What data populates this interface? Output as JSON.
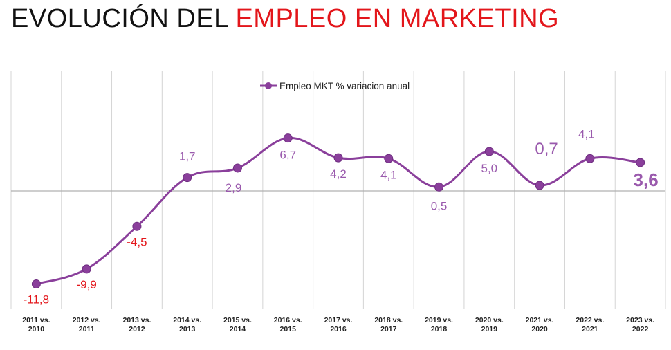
{
  "title": {
    "part1": "EVOLUCIÓN DEL ",
    "part2": "EMPLEO EN MARKETING"
  },
  "colors": {
    "accent_red": "#e3161b",
    "series_purple": "#8a3f9b",
    "label_purple": "#9a5aad",
    "negative_red": "#e3161b",
    "grid": "#d4d4d4",
    "zero_line": "#b0b0b0"
  },
  "chart_data": {
    "type": "line",
    "title": "",
    "xlabel": "",
    "ylabel": "",
    "grid": true,
    "legend_position": "top-center",
    "categories": [
      [
        "2011 vs.",
        "2010"
      ],
      [
        "2012 vs.",
        "2011"
      ],
      [
        "2013 vs.",
        "2012"
      ],
      [
        "2014 vs.",
        "2013"
      ],
      [
        "2015 vs.",
        "2014"
      ],
      [
        "2016 vs.",
        "2015"
      ],
      [
        "2017 vs.",
        "2016"
      ],
      [
        "2018 vs.",
        "2017"
      ],
      [
        "2019 vs.",
        "2018"
      ],
      [
        "2020 vs.",
        "2019"
      ],
      [
        "2021 vs.",
        "2020"
      ],
      [
        "2022 vs.",
        "2021"
      ],
      [
        "2023 vs.",
        "2022"
      ]
    ],
    "series": [
      {
        "name": "Empleo MKT % variacion anual",
        "values": [
          -11.8,
          -9.9,
          -4.5,
          1.7,
          2.9,
          6.7,
          4.2,
          4.1,
          0.5,
          5.0,
          0.7,
          4.1,
          3.6
        ],
        "labels": [
          "-11,8",
          "-9,9",
          "-4,5",
          "1,7",
          "2,9",
          "6,7",
          "4,2",
          "4,1",
          "0,5",
          "5,0",
          "0,7",
          "4,1",
          "3,6"
        ]
      }
    ]
  }
}
